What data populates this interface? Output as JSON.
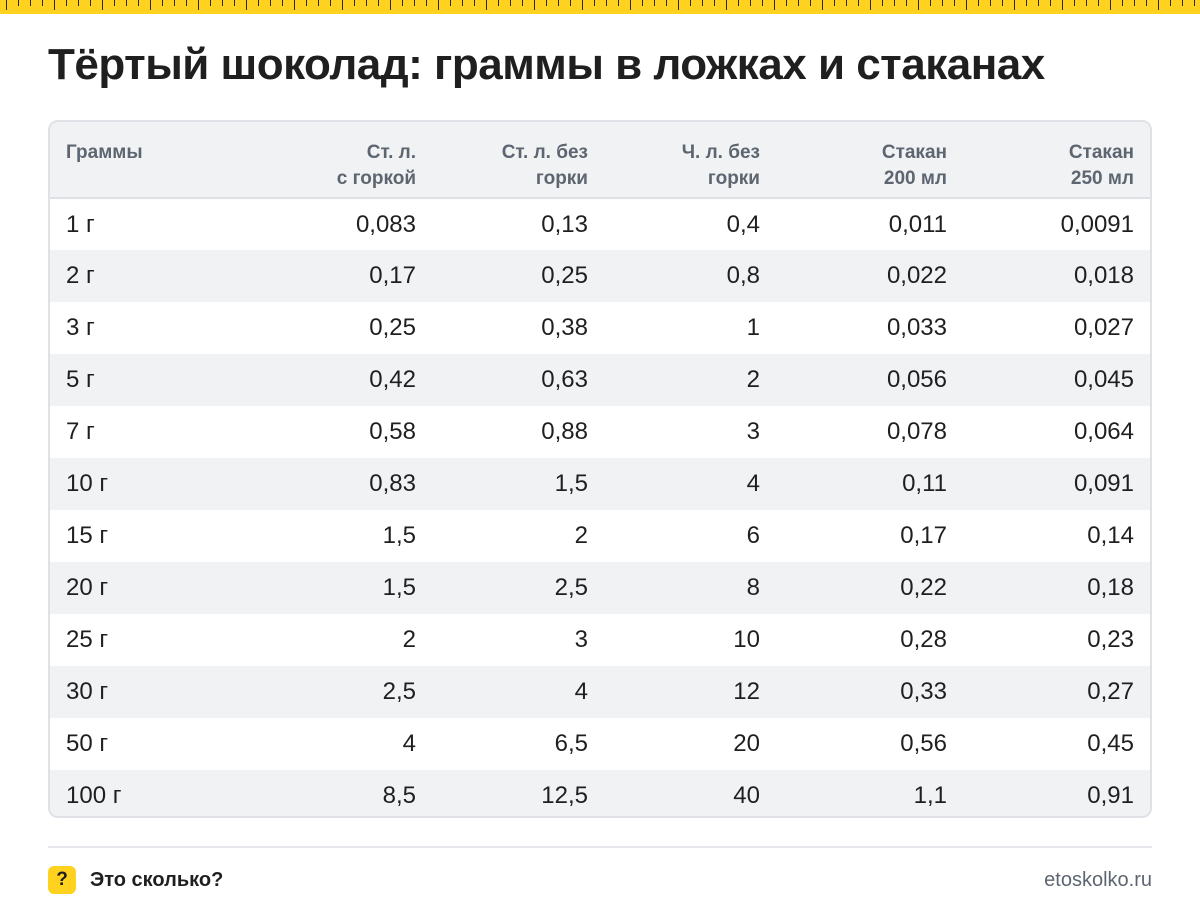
{
  "title": "Тёртый шоколад: граммы в ложках и стаканах",
  "table": {
    "headers": [
      [
        "Граммы",
        ""
      ],
      [
        "Ст. л.",
        "с горкой"
      ],
      [
        "Ст. л. без",
        "горки"
      ],
      [
        "Ч. л. без",
        "горки"
      ],
      [
        "Стакан",
        "200 мл"
      ],
      [
        "Стакан",
        "250 мл"
      ]
    ],
    "rows": [
      [
        "1 г",
        "0,083",
        "0,13",
        "0,4",
        "0,011",
        "0,0091"
      ],
      [
        "2 г",
        "0,17",
        "0,25",
        "0,8",
        "0,022",
        "0,018"
      ],
      [
        "3 г",
        "0,25",
        "0,38",
        "1",
        "0,033",
        "0,027"
      ],
      [
        "5 г",
        "0,42",
        "0,63",
        "2",
        "0,056",
        "0,045"
      ],
      [
        "7 г",
        "0,58",
        "0,88",
        "3",
        "0,078",
        "0,064"
      ],
      [
        "10 г",
        "0,83",
        "1,5",
        "4",
        "0,11",
        "0,091"
      ],
      [
        "15 г",
        "1,5",
        "2",
        "6",
        "0,17",
        "0,14"
      ],
      [
        "20 г",
        "1,5",
        "2,5",
        "8",
        "0,22",
        "0,18"
      ],
      [
        "25 г",
        "2",
        "3",
        "10",
        "0,28",
        "0,23"
      ],
      [
        "30 г",
        "2,5",
        "4",
        "12",
        "0,33",
        "0,27"
      ],
      [
        "50 г",
        "4",
        "6,5",
        "20",
        "0,56",
        "0,45"
      ],
      [
        "100 г",
        "8,5",
        "12,5",
        "40",
        "1,1",
        "0,91"
      ]
    ]
  },
  "footer": {
    "badge": "?",
    "brand": "Это сколько?",
    "site": "etoskolko.ru"
  },
  "colors": {
    "accent": "#ffd21f",
    "row_stripe": "#f1f2f4",
    "header_text": "#5d6670"
  }
}
